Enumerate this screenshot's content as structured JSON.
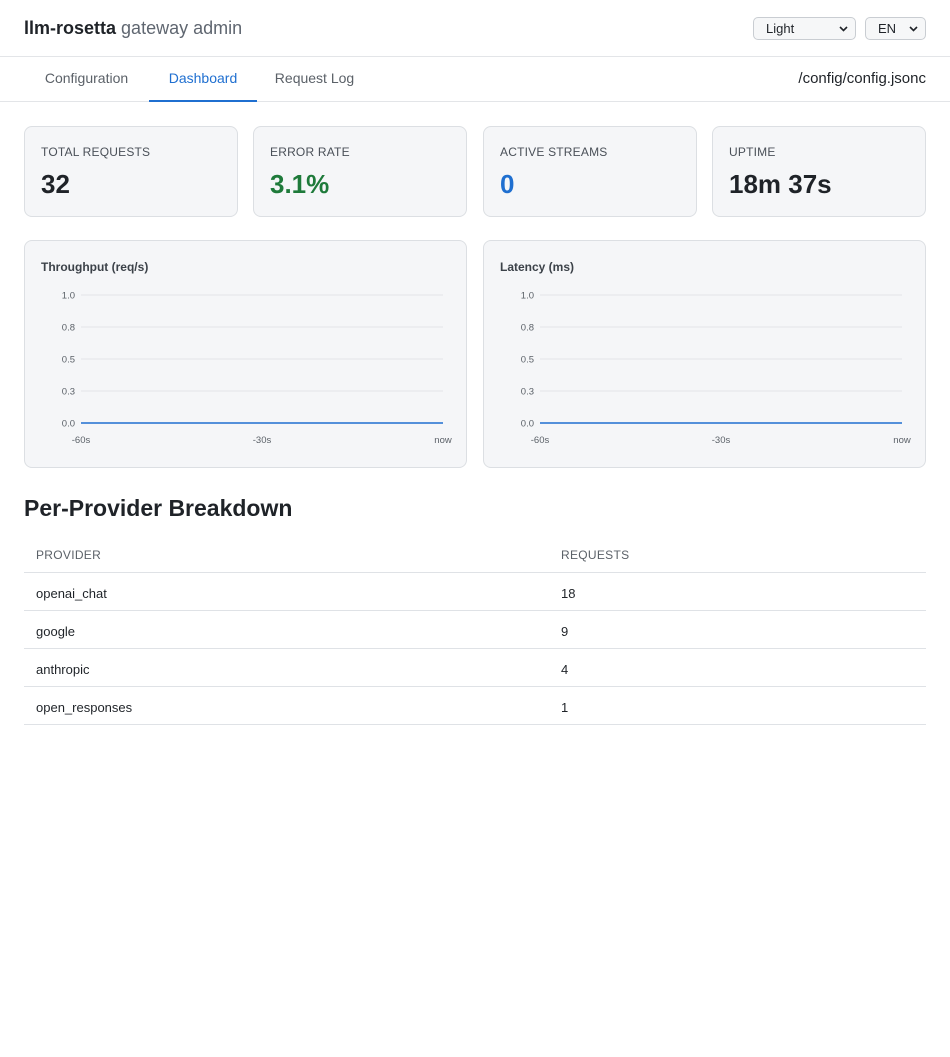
{
  "header": {
    "brand_name": "llm-rosetta",
    "brand_subtitle": "gateway admin",
    "theme_select": {
      "value": "Light"
    },
    "lang_select": {
      "value": "EN"
    }
  },
  "tabs": [
    {
      "label": "Configuration",
      "active": false
    },
    {
      "label": "Dashboard",
      "active": true
    },
    {
      "label": "Request Log",
      "active": false
    }
  ],
  "config_path": "/config/config.jsonc",
  "stats": [
    {
      "label": "TOTAL REQUESTS",
      "value": "32"
    },
    {
      "label": "ERROR RATE",
      "value": "3.1%"
    },
    {
      "label": "ACTIVE STREAMS",
      "value": "0"
    },
    {
      "label": "UPTIME",
      "value": "18m 37s"
    }
  ],
  "chart_data": [
    {
      "type": "line",
      "title": "Throughput (req/s)",
      "x_ticks": [
        "-60s",
        "-30s",
        "now"
      ],
      "y_ticks": [
        "1.0",
        "0.8",
        "0.5",
        "0.3",
        "0.0"
      ],
      "ylim": [
        0,
        1
      ],
      "series": [
        {
          "values": [
            0,
            0,
            0,
            0,
            0,
            0,
            0
          ]
        }
      ]
    },
    {
      "type": "line",
      "title": "Latency (ms)",
      "x_ticks": [
        "-60s",
        "-30s",
        "now"
      ],
      "y_ticks": [
        "1.0",
        "0.8",
        "0.5",
        "0.3",
        "0.0"
      ],
      "ylim": [
        0,
        1
      ],
      "series": [
        {
          "values": [
            0,
            0,
            0,
            0,
            0,
            0,
            0
          ]
        }
      ]
    }
  ],
  "breakdown": {
    "title": "Per-Provider Breakdown",
    "columns": [
      "PROVIDER",
      "REQUESTS"
    ],
    "rows": [
      {
        "provider": "openai_chat",
        "requests": "18"
      },
      {
        "provider": "google",
        "requests": "9"
      },
      {
        "provider": "anthropic",
        "requests": "4"
      },
      {
        "provider": "open_responses",
        "requests": "1"
      }
    ]
  },
  "colors": {
    "accent": "#1f6fd0",
    "success": "#1e7a3a",
    "line": "#1f6fd0"
  }
}
